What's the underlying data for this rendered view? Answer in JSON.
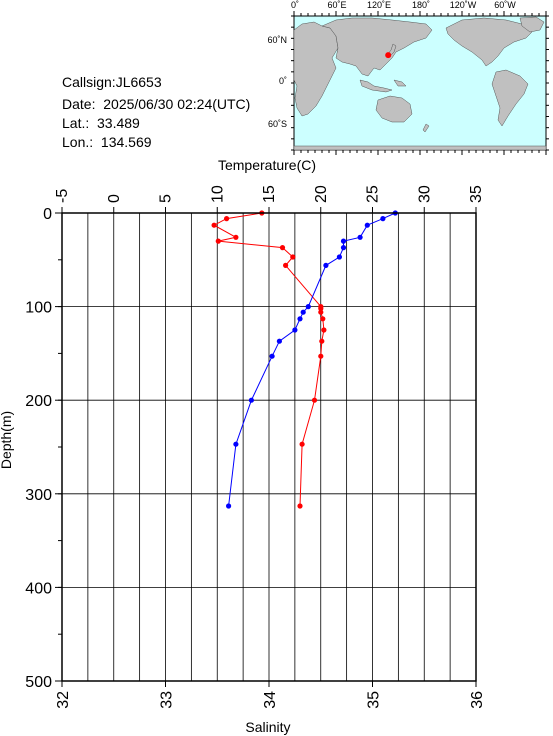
{
  "station": {
    "callsign": "Callsign:JL6653",
    "date": "Date:  2025/06/30 02:24(UTC)",
    "lat": "Lat.:  33.489",
    "lon": "Lon.:  134.569"
  },
  "map": {
    "top_labels": [
      "0˚",
      "60˚E",
      "120˚E",
      "180˚",
      "120˚W",
      "60˚W"
    ],
    "left_labels": [
      "60˚N",
      "0˚",
      "60˚S"
    ],
    "ocean_color": "#ccffff",
    "land_color": "#c0c0c0",
    "station_marker": {
      "lon": 134.569,
      "lat": 33.489,
      "color": "#ff0000"
    }
  },
  "chart_data": {
    "type": "line",
    "ylabel": "Depth(m)",
    "y_range": [
      0,
      500
    ],
    "y_ticks": [
      0,
      100,
      200,
      300,
      400,
      500
    ],
    "y_reversed": true,
    "temperature_axis": {
      "label": "Temperature(C)",
      "range": [
        -5,
        35
      ],
      "ticks": [
        -5,
        0,
        5,
        10,
        15,
        20,
        25,
        30,
        35
      ]
    },
    "salinity_axis": {
      "label": "Salinity",
      "range": [
        32,
        36
      ],
      "ticks": [
        32,
        33,
        34,
        35,
        36
      ]
    },
    "grid": true,
    "series": [
      {
        "axis": "temperature",
        "color": "#ff0000",
        "points": [
          [
            14.3,
            0
          ],
          [
            10.9,
            6
          ],
          [
            9.7,
            13
          ],
          [
            11.8,
            26
          ],
          [
            10.1,
            30
          ],
          [
            16.3,
            37
          ],
          [
            17.3,
            47
          ],
          [
            16.6,
            56
          ],
          [
            20.0,
            100
          ],
          [
            20.0,
            102
          ],
          [
            20.0,
            106
          ],
          [
            20.2,
            113
          ],
          [
            20.3,
            125
          ],
          [
            20.1,
            137
          ],
          [
            20.0,
            153
          ],
          [
            19.4,
            200
          ],
          [
            18.2,
            247
          ],
          [
            18.0,
            313
          ]
        ]
      },
      {
        "axis": "salinity",
        "color": "#0000ff",
        "points": [
          [
            35.22,
            0
          ],
          [
            35.1,
            6
          ],
          [
            34.95,
            13
          ],
          [
            34.88,
            26
          ],
          [
            34.72,
            30
          ],
          [
            34.72,
            37
          ],
          [
            34.68,
            47
          ],
          [
            34.55,
            56
          ],
          [
            34.38,
            100
          ],
          [
            34.33,
            106
          ],
          [
            34.3,
            113
          ],
          [
            34.25,
            125
          ],
          [
            34.1,
            137
          ],
          [
            34.03,
            153
          ],
          [
            33.83,
            200
          ],
          [
            33.68,
            247
          ],
          [
            33.61,
            313
          ]
        ]
      }
    ]
  }
}
